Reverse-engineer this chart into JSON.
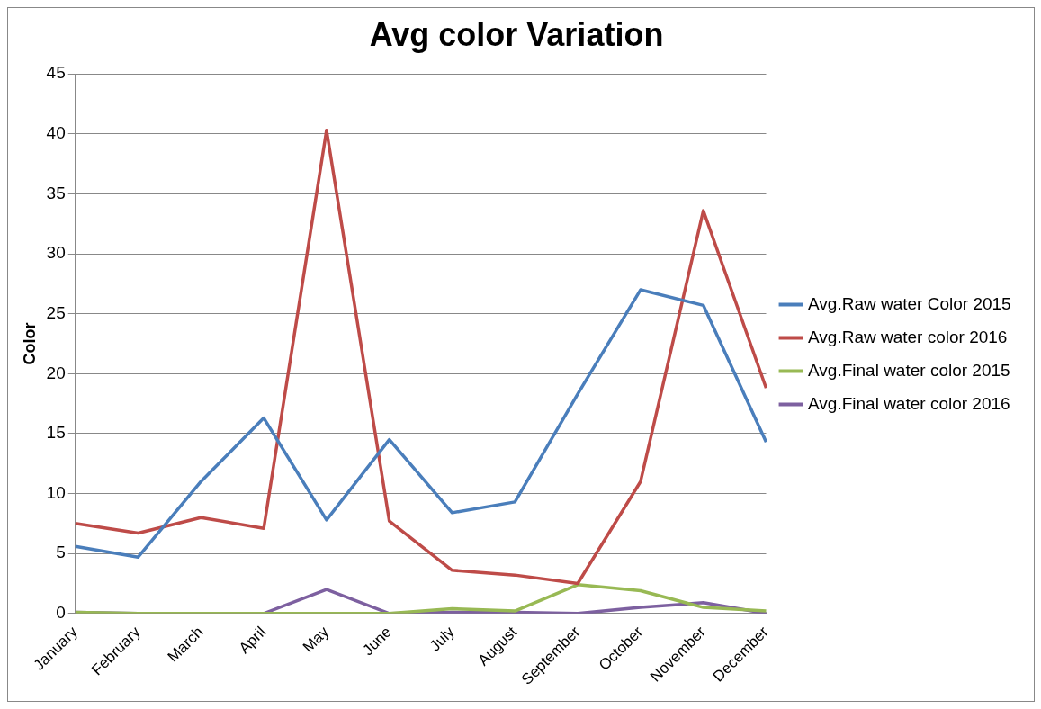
{
  "chart_data": {
    "type": "line",
    "title": "Avg color Variation",
    "ylabel": "Color",
    "categories": [
      "January",
      "February",
      "March",
      "April",
      "May",
      "June",
      "July",
      "August",
      "September",
      "October",
      "November",
      "December"
    ],
    "series": [
      {
        "name": "Avg.Raw water Color 2015",
        "color": "#4a7ebb",
        "values": [
          5.6,
          4.7,
          11.0,
          16.3,
          7.8,
          14.5,
          8.4,
          9.3,
          18.3,
          27.0,
          25.7,
          14.3
        ]
      },
      {
        "name": "Avg.Raw water color 2016",
        "color": "#be4b48",
        "values": [
          7.5,
          6.7,
          8.0,
          7.1,
          40.3,
          7.7,
          3.6,
          3.2,
          2.5,
          11.0,
          33.6,
          18.8
        ]
      },
      {
        "name": "Avg.Final water color 2015",
        "color": "#98b954",
        "values": [
          0.1,
          0,
          0,
          0,
          0,
          0,
          0.4,
          0.2,
          2.4,
          1.9,
          0.5,
          0.2
        ]
      },
      {
        "name": "Avg.Final water color 2016",
        "color": "#7d60a0",
        "values": [
          0.1,
          0,
          0,
          0,
          2.0,
          0,
          0.1,
          0.1,
          0,
          0.5,
          0.9,
          0
        ]
      }
    ],
    "ylim": [
      0,
      45
    ],
    "yticks": [
      0,
      5,
      10,
      15,
      20,
      25,
      30,
      35,
      40,
      45
    ],
    "grid": "y",
    "legend": "right",
    "marker": "none",
    "line_style": "solid"
  }
}
